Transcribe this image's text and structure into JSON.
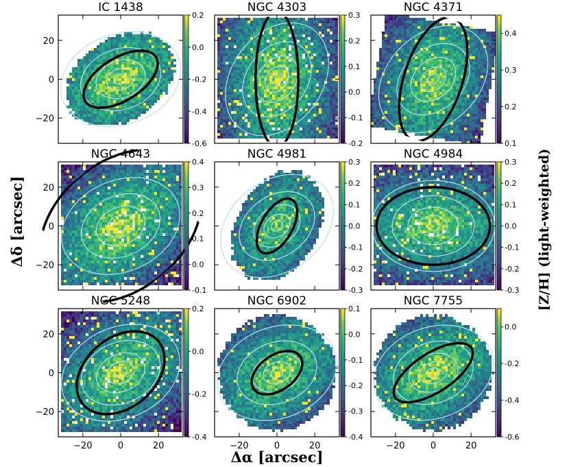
{
  "figure": {
    "xlabel": "Δα [arcsec]",
    "ylabel": "Δδ [arcsec]",
    "cbar_label": "[Z/H] (light-weighted)"
  },
  "chart_data": {
    "type": "heatmap",
    "xlim": [
      -33,
      33
    ],
    "ylim": [
      -33,
      33
    ],
    "x_ticks": [
      -20,
      0,
      20
    ],
    "y_ticks": [
      -20,
      0,
      20
    ],
    "colormap": "viridis",
    "contour_color": "#b8e0ea",
    "ellipse_color": "#000000",
    "panels": [
      {
        "title": "IC 1438",
        "cbar_ticks": [
          "0.2",
          "0.0",
          "-0.2",
          "-0.4",
          "-0.6"
        ],
        "cbar_range": [
          -0.6,
          0.2
        ],
        "centre_value": 0.15,
        "ellipse": {
          "a": 22,
          "b": 11,
          "pa": 32
        },
        "footprint": "tilted-oval"
      },
      {
        "title": "NGC 4303",
        "cbar_ticks": [
          "0.3",
          "0.2",
          "0.1",
          "0.0",
          "-0.1",
          "-0.2"
        ],
        "cbar_range": [
          -0.2,
          0.3
        ],
        "centre_value": 0.28,
        "ellipse": {
          "a": 36,
          "b": 11,
          "pa": 90
        },
        "footprint": "square"
      },
      {
        "title": "NGC 4371",
        "cbar_ticks": [
          "0.4",
          "0.3",
          "0.2",
          "0.1"
        ],
        "cbar_range": [
          0.1,
          0.45
        ],
        "centre_value": 0.42,
        "ellipse": {
          "a": 34,
          "b": 15,
          "pa": 72
        },
        "footprint": "rotated-square"
      },
      {
        "title": "NGC 4643",
        "cbar_ticks": [
          "0.4",
          "0.3",
          "0.2",
          "0.1",
          "0.0",
          "-0.1"
        ],
        "cbar_range": [
          -0.1,
          0.4
        ],
        "centre_value": 0.38,
        "ellipse": {
          "a": 48,
          "b": 33,
          "pa": 40
        },
        "footprint": "square"
      },
      {
        "title": "NGC 4981",
        "cbar_ticks": [
          "0.3",
          "0.2",
          "0.1",
          "0.0",
          "-0.1",
          "-0.2",
          "-0.3"
        ],
        "cbar_range": [
          -0.3,
          0.3
        ],
        "centre_value": 0.2,
        "ellipse": {
          "a": 16,
          "b": 8,
          "pa": 60
        },
        "footprint": "tilted-oval"
      },
      {
        "title": "NGC 4984",
        "cbar_ticks": [
          "0.3",
          "0.2",
          "0.1",
          "0.0",
          "-0.1",
          "-0.2",
          "-0.3"
        ],
        "cbar_range": [
          -0.3,
          0.3
        ],
        "centre_value": 0.25,
        "ellipse": {
          "a": 30,
          "b": 20,
          "pa": 0
        },
        "footprint": "square"
      },
      {
        "title": "NGC 5248",
        "cbar_ticks": [
          "0.2",
          "0.0",
          "-0.2",
          "-0.4"
        ],
        "cbar_range": [
          -0.4,
          0.2
        ],
        "centre_value": 0.15,
        "ellipse": {
          "a": 26,
          "b": 18,
          "pa": 40
        },
        "footprint": "square"
      },
      {
        "title": "NGC 6902",
        "cbar_ticks": [
          "0.1",
          "0.0",
          "-0.1",
          "-0.2",
          "-0.3",
          "-0.4"
        ],
        "cbar_range": [
          -0.4,
          0.1
        ],
        "centre_value": 0.05,
        "ellipse": {
          "a": 15,
          "b": 9,
          "pa": 35
        },
        "footprint": "disk"
      },
      {
        "title": "NGC 7755",
        "cbar_ticks": [
          "0.0",
          "-0.2",
          "-0.4",
          "-0.6"
        ],
        "cbar_range": [
          -0.6,
          0.1
        ],
        "centre_value": 0.05,
        "ellipse": {
          "a": 24,
          "b": 10,
          "pa": 33
        },
        "footprint": "disk"
      }
    ]
  }
}
